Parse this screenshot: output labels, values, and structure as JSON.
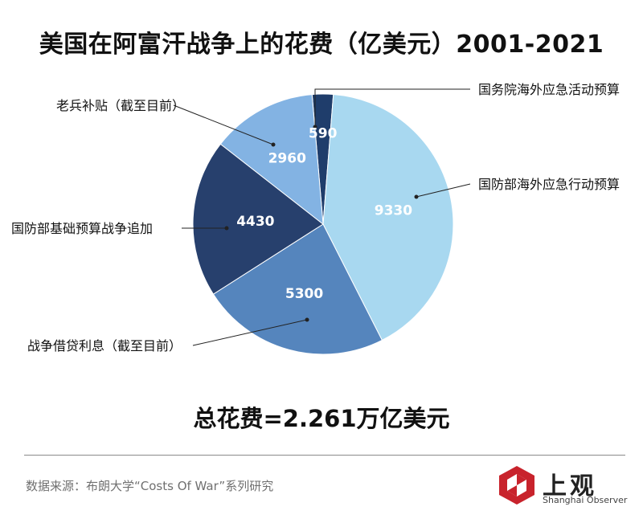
{
  "title": "美国在阿富汗战争上的花费（亿美元）2001-2021",
  "chart_data": {
    "type": "pie",
    "title": "美国在阿富汗战争上的花费（亿美元）2001-2021",
    "unit": "亿美元",
    "slices": [
      {
        "label": "国务院海外应急活动预算",
        "value": 590,
        "color": "#1f3d6b"
      },
      {
        "label": "国防部海外应急行动预算",
        "value": 9330,
        "color": "#a8d8f0"
      },
      {
        "label": "战争借贷利息（截至目前）",
        "value": 5300,
        "color": "#5585bd"
      },
      {
        "label": "国防部基础预算战争追加",
        "value": 4430,
        "color": "#27406d"
      },
      {
        "label": "老兵补贴（截至目前）",
        "value": 2960,
        "color": "#83b3e3"
      }
    ]
  },
  "total_text": "总花费=2.261万亿美元",
  "source_text": "数据来源：布朗大学“Costs Of War”系列研究",
  "logo": {
    "text": "上观",
    "subtitle": "Shanghai Observer"
  }
}
